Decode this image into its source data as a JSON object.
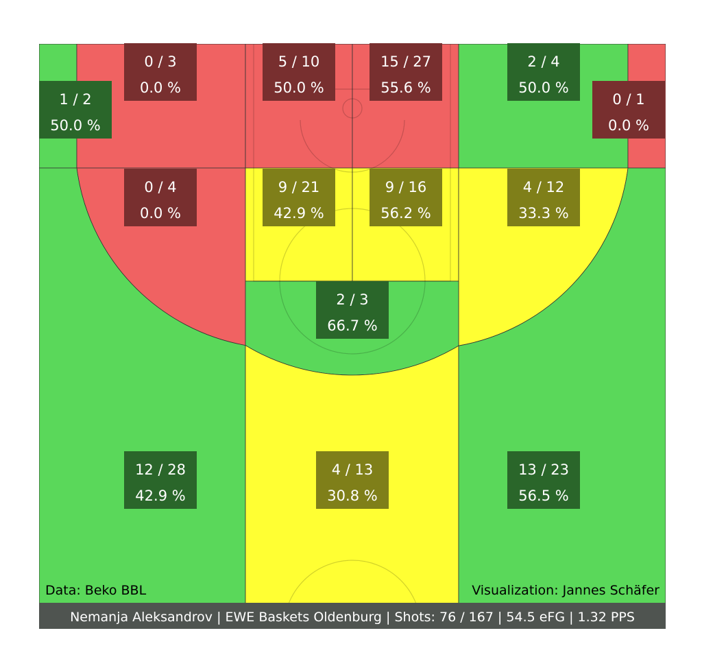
{
  "chart_data": {
    "type": "heatmap",
    "subtype": "basketball-shot-chart",
    "colors": {
      "good": "#5ad85a",
      "average": "#ffff33",
      "poor": "#f06262",
      "label_good": "#2a662a",
      "label_average": "#7f7f19",
      "label_poor": "#782f2f",
      "footer_bg": "#4f5450",
      "line": "#333333"
    },
    "zones": [
      {
        "id": "left-corner-three",
        "made": 1,
        "attempts": 2,
        "text_made": "1 / 2",
        "text_pct": "50.0 %",
        "rating": "good"
      },
      {
        "id": "left-baseline-mid",
        "made": 0,
        "attempts": 3,
        "text_made": "0 / 3",
        "text_pct": "0.0 %",
        "rating": "poor"
      },
      {
        "id": "left-paint-baseline",
        "made": 5,
        "attempts": 10,
        "text_made": "5 / 10",
        "text_pct": "50.0 %",
        "rating": "poor"
      },
      {
        "id": "right-paint-baseline",
        "made": 15,
        "attempts": 27,
        "text_made": "15 / 27",
        "text_pct": "55.6 %",
        "rating": "poor"
      },
      {
        "id": "right-baseline-mid",
        "made": 2,
        "attempts": 4,
        "text_made": "2 / 4",
        "text_pct": "50.0 %",
        "rating": "good"
      },
      {
        "id": "right-corner-three",
        "made": 0,
        "attempts": 1,
        "text_made": "0 / 1",
        "text_pct": "0.0 %",
        "rating": "poor"
      },
      {
        "id": "left-wing-mid",
        "made": 0,
        "attempts": 4,
        "text_made": "0 / 4",
        "text_pct": "0.0 %",
        "rating": "poor"
      },
      {
        "id": "left-paint-upper",
        "made": 9,
        "attempts": 21,
        "text_made": "9 / 21",
        "text_pct": "42.9 %",
        "rating": "average"
      },
      {
        "id": "right-paint-upper",
        "made": 9,
        "attempts": 16,
        "text_made": "9 / 16",
        "text_pct": "56.2 %",
        "rating": "average"
      },
      {
        "id": "right-wing-mid",
        "made": 4,
        "attempts": 12,
        "text_made": "4 / 12",
        "text_pct": "33.3 %",
        "rating": "average"
      },
      {
        "id": "top-key-mid",
        "made": 2,
        "attempts": 3,
        "text_made": "2 / 3",
        "text_pct": "66.7 %",
        "rating": "good"
      },
      {
        "id": "left-three",
        "made": 12,
        "attempts": 28,
        "text_made": "12 / 28",
        "text_pct": "42.9 %",
        "rating": "good"
      },
      {
        "id": "center-three",
        "made": 4,
        "attempts": 13,
        "text_made": "4 / 13",
        "text_pct": "30.8 %",
        "rating": "average"
      },
      {
        "id": "right-three",
        "made": 13,
        "attempts": 23,
        "text_made": "13 / 23",
        "text_pct": "56.5 %",
        "rating": "good"
      }
    ],
    "data_credit": "Data: Beko BBL",
    "viz_credit": "Visualization: Jannes Schäfer",
    "footer": "Nemanja Aleksandrov | EWE Baskets Oldenburg | Shots: 76 / 167 | 54.5 eFG | 1.32 PPS"
  }
}
